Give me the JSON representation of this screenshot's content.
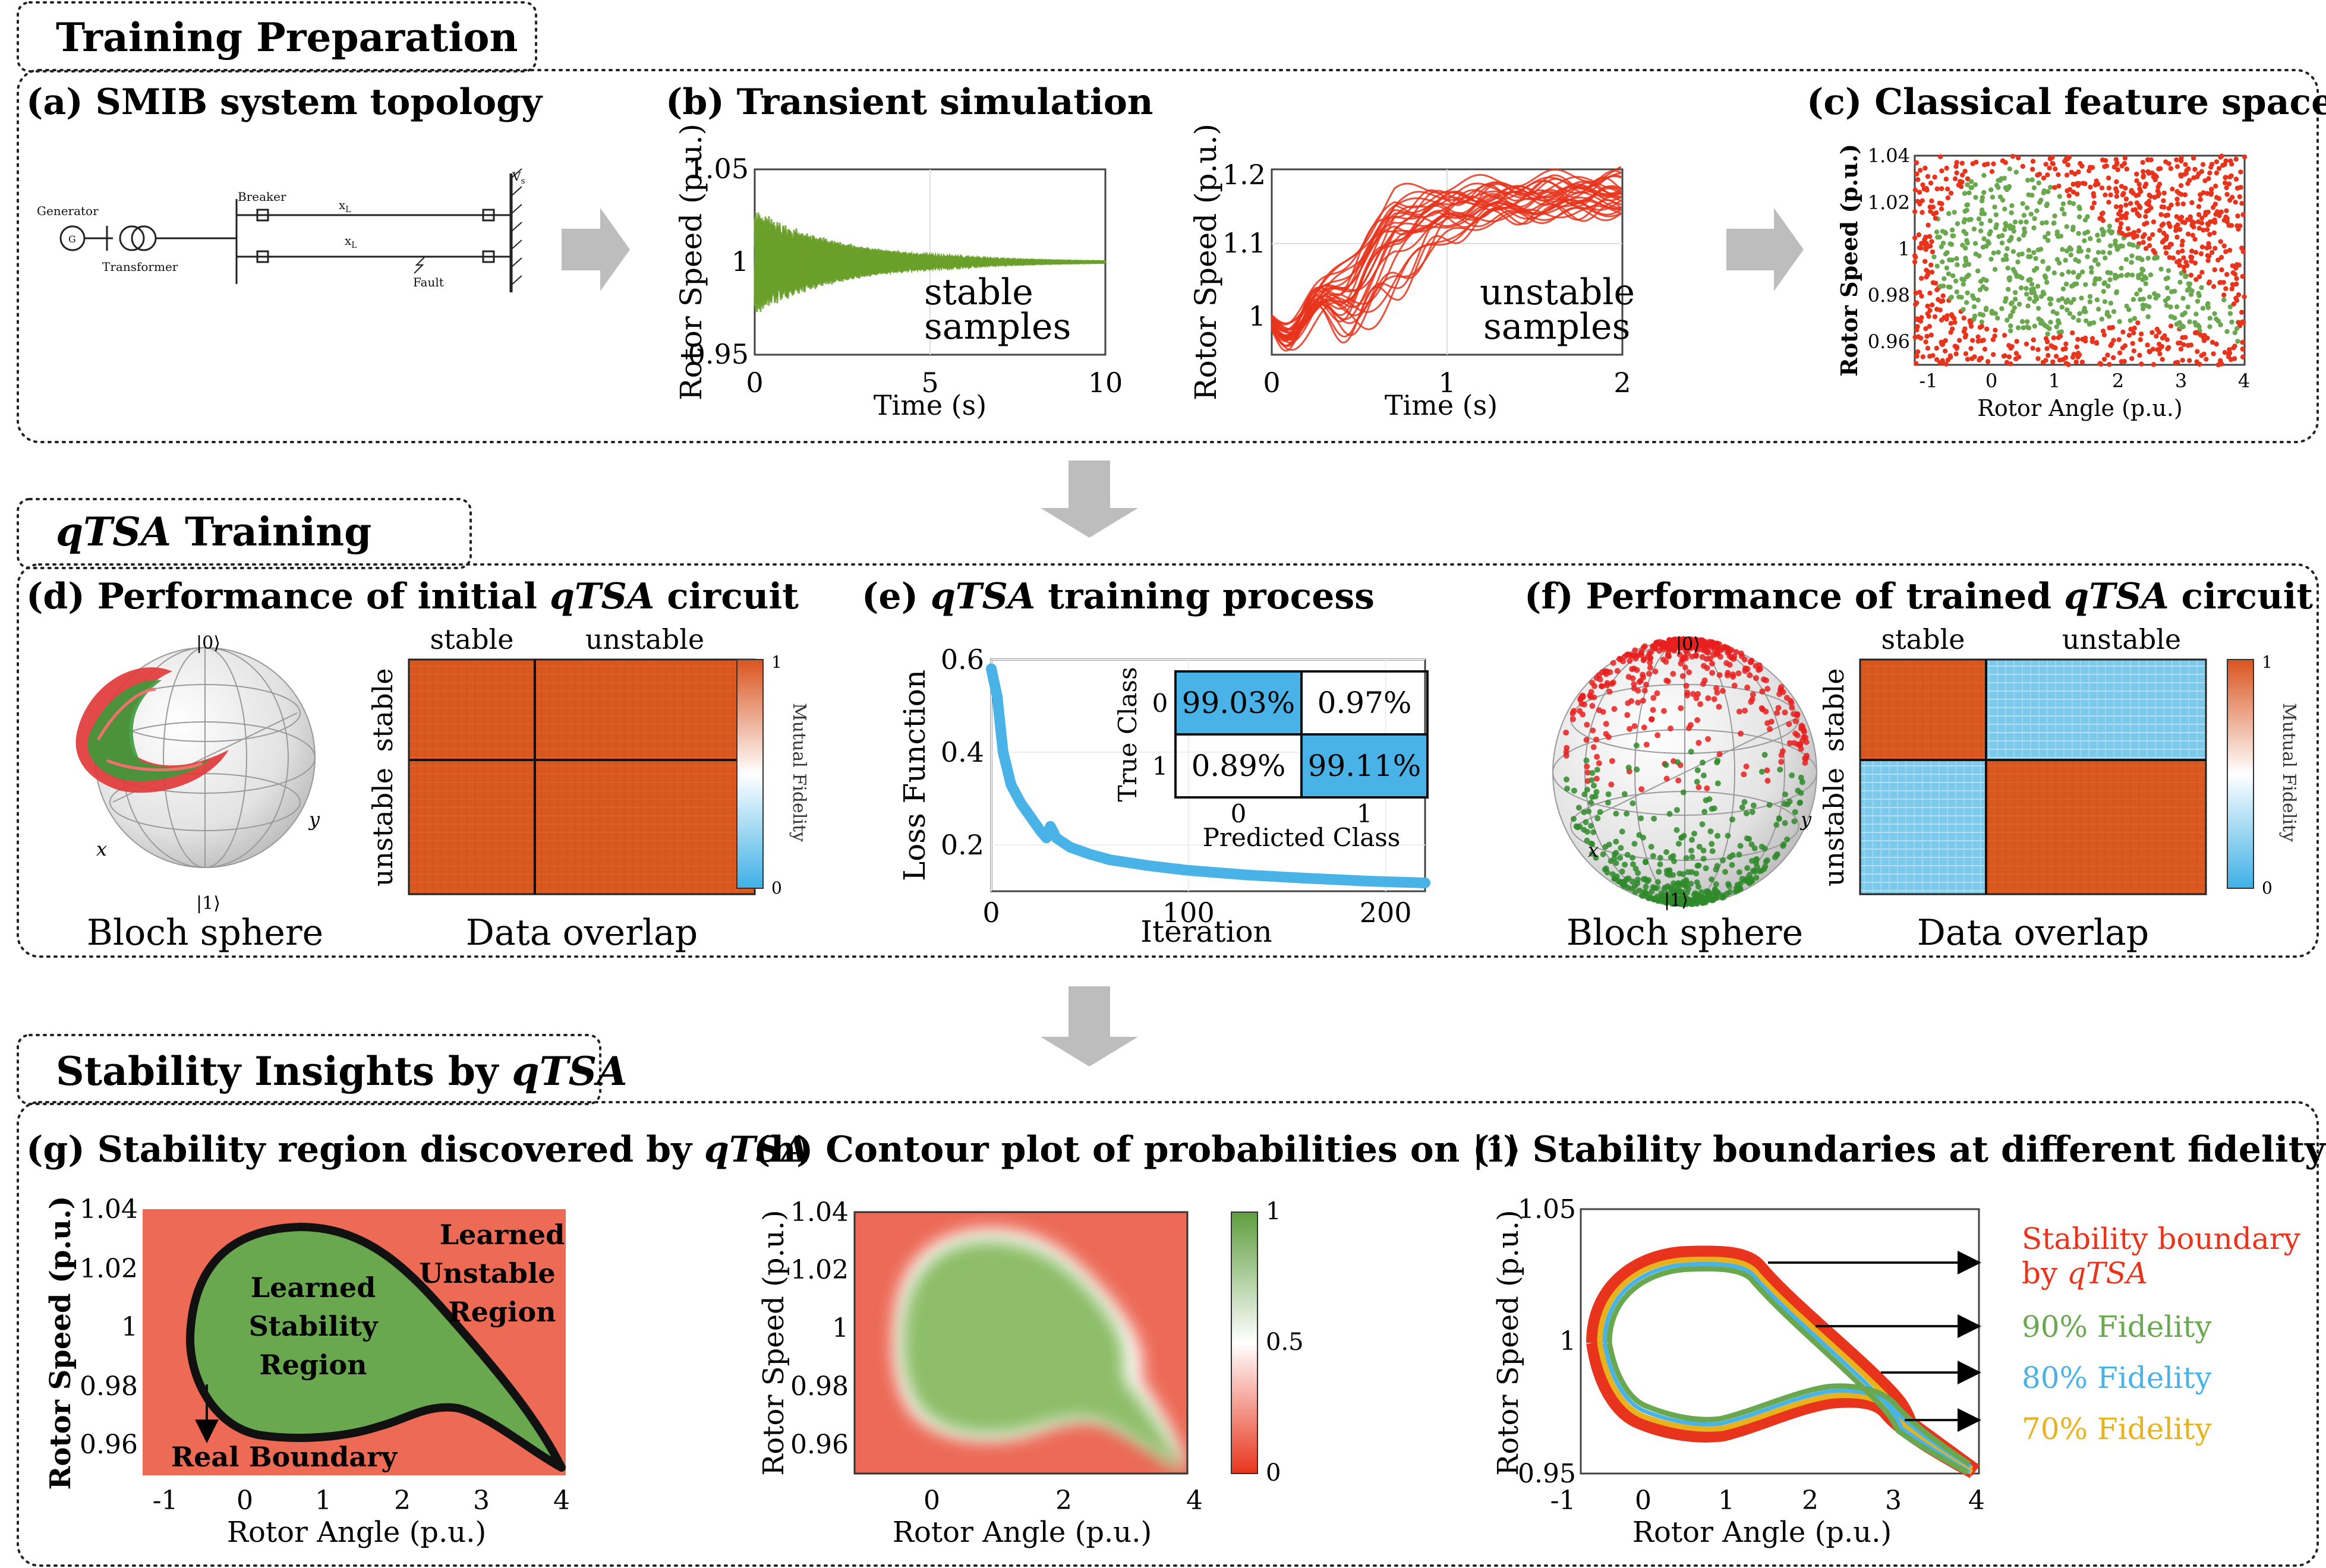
{
  "sections": {
    "prep": "Training Preparation",
    "train_pre": "qTSA",
    "train_post": " Training",
    "insight_pre": "Stability Insights by ",
    "insight_em": "qTSA"
  },
  "panels": {
    "a": "(a) SMIB system topology",
    "b": "(b) Transient simulation",
    "c": "(c) Classical feature space",
    "d_pre": "(d) Performance of initial ",
    "d_em": "qTSA",
    "d_post": " circuit",
    "e_pre": "(e) ",
    "e_em": "qTSA",
    "e_post": " training process",
    "f_pre": "(f) Performance of trained ",
    "f_em": "qTSA",
    "f_post": " circuit",
    "g_pre": "(g) Stability region discovered by ",
    "g_em": "qTSA",
    "h_pre": "(h) Contour plot of probabilities on ",
    "h_ket": "|1⟩",
    "i": "(i) Stability boundaries at different fidelity"
  },
  "topology": {
    "generator": "Generator",
    "g": "G",
    "transformer": "Transformer",
    "breaker": "Breaker",
    "xl": "x",
    "xl_sub": "L",
    "fault": "Fault",
    "vs": "V",
    "vs_sub": "s"
  },
  "sim": {
    "ylabel": "Rotor Speed (p.u.)",
    "xlabel": "Time (s)",
    "stable_label": [
      "stable",
      "samples"
    ],
    "unstable_label": [
      "unstable",
      "samples"
    ],
    "stable_axis": {
      "xticks": [
        "0",
        "5",
        "10"
      ],
      "yticks": [
        "1.05",
        "1",
        "0.95"
      ],
      "xlim": [
        0,
        10
      ],
      "ylim": [
        0.95,
        1.05
      ]
    },
    "unstable_axis": {
      "xticks": [
        "0",
        "1",
        "2"
      ],
      "yticks": [
        "1.2",
        "1.1",
        "1"
      ],
      "xlim": [
        0,
        2
      ],
      "ylim": [
        0.96,
        1.22
      ]
    }
  },
  "feature_space": {
    "xlabel": "Rotor Angle (p.u.)",
    "ylabel": "Rotor Speed (p.u.)",
    "xticks": [
      "-1",
      "0",
      "1",
      "2",
      "3",
      "4"
    ],
    "yticks": [
      "1.04",
      "1.02",
      "1",
      "0.98",
      "0.96"
    ],
    "xlim": [
      -1.2,
      4
    ],
    "ylim": [
      0.95,
      1.042
    ],
    "stable_color": "#6aa84f",
    "unstable_color": "#e8341c"
  },
  "bloch": {
    "ket0": "|0⟩",
    "ket1": "|1⟩",
    "x": "x",
    "y": "y",
    "caption": "Bloch sphere"
  },
  "overlap": {
    "stable": "stable",
    "unstable": "unstable",
    "caption": "Data overlap",
    "colorbar_label": "Mutual Fidelity",
    "cb_max": "1",
    "cb_min": "0",
    "hot": "#d9541f",
    "cold": "#5bbde6"
  },
  "chart_data": {
    "type": "line",
    "xlabel": "Iteration",
    "ylabel": "Loss Function",
    "xticks": [
      0,
      100,
      200
    ],
    "yticks": [
      0.2,
      0.4,
      0.6
    ],
    "xlim": [
      0,
      220
    ],
    "ylim": [
      0.1,
      0.6
    ],
    "x": [
      0,
      3,
      6,
      10,
      15,
      20,
      25,
      28,
      30,
      33,
      40,
      50,
      60,
      80,
      100,
      130,
      160,
      190,
      220
    ],
    "values": [
      0.58,
      0.52,
      0.4,
      0.33,
      0.29,
      0.26,
      0.23,
      0.215,
      0.24,
      0.215,
      0.195,
      0.18,
      0.168,
      0.155,
      0.145,
      0.135,
      0.128,
      0.122,
      0.118
    ],
    "color": "#49b3e8",
    "confusion": {
      "true_label": "True Class",
      "pred_label": "Predicted Class",
      "rows": [
        "0",
        "1"
      ],
      "cols": [
        "0",
        "1"
      ],
      "cells": [
        [
          "99.03%",
          "0.97%"
        ],
        [
          "0.89%",
          "99.11%"
        ]
      ],
      "highlight": "#49b3e8"
    }
  },
  "region": {
    "xlabel": "Rotor Angle (p.u.)",
    "ylabel": "Rotor Speed (p.u.)",
    "xticks": [
      "-1",
      "0",
      "1",
      "2",
      "3",
      "4"
    ],
    "yticks": [
      "1.04",
      "1.02",
      "1",
      "0.98",
      "0.96"
    ],
    "learned_stable": [
      "Learned",
      "Stability",
      "Region"
    ],
    "learned_unstable": [
      "Learned",
      "Unstable",
      "Region"
    ],
    "real_boundary": "Real Boundary",
    "bg": "#ed6a55",
    "fill": "#6aa84f"
  },
  "contour": {
    "xlabel": "Rotor Angle (p.u.)",
    "ylabel": "Rotor Speed (p.u.)",
    "xticks": [
      "0",
      "2",
      "4"
    ],
    "yticks": [
      "1.04",
      "1.02",
      "1",
      "0.98",
      "0.96"
    ],
    "cb_ticks": [
      "1",
      "0.5",
      "0"
    ]
  },
  "boundaries": {
    "xlabel": "Rotor Angle (p.u.)",
    "ylabel": "Rotor Speed (p.u.)",
    "xticks": [
      "-1",
      "0",
      "1",
      "2",
      "3",
      "4"
    ],
    "yticks": [
      "1.05",
      "1",
      "0.95"
    ],
    "legend": [
      {
        "text": "Stability boundary",
        "color": "#e8341c"
      },
      {
        "text": "by ",
        "em": "qTSA",
        "color": "#e8341c"
      },
      {
        "text": "90% Fidelity",
        "color": "#6aa84f"
      },
      {
        "text": "80% Fidelity",
        "color": "#49b3e8"
      },
      {
        "text": "70% Fidelity",
        "color": "#e8b21c"
      }
    ]
  }
}
